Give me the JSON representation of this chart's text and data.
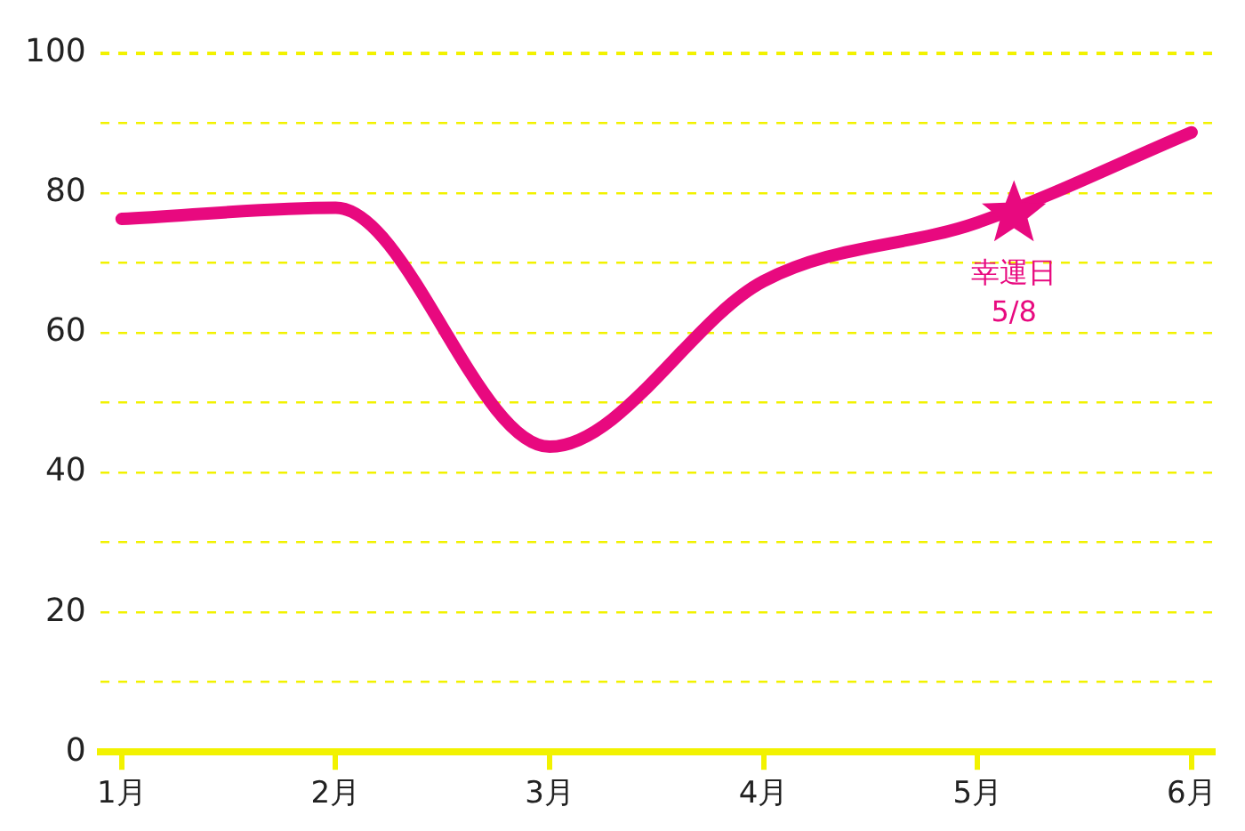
{
  "chart_data": {
    "type": "line",
    "x": [
      1,
      2,
      3,
      4,
      5,
      6
    ],
    "series": [
      {
        "type": "line",
        "color": "#e8097f",
        "marker": "none",
        "values": [
          76.3,
          77.9,
          43.7,
          67.4,
          75.8,
          88.7
        ]
      },
      {
        "type": "scatter",
        "color": "#e8097f",
        "marker": "star",
        "x": [
          5.17
        ],
        "values": [
          77
        ]
      }
    ],
    "xlim": [
      0.9,
      6.1
    ],
    "xticks": [
      {
        "value": 1,
        "label": "1月"
      },
      {
        "value": 2,
        "label": "2月"
      },
      {
        "value": 3,
        "label": "3月"
      },
      {
        "value": 4,
        "label": "4月"
      },
      {
        "value": 5,
        "label": "5月"
      },
      {
        "value": 6,
        "label": "6月"
      }
    ],
    "ylim": [
      0,
      100
    ],
    "yticks": [
      0,
      {
        "value": 10,
        "label": null
      },
      20,
      {
        "value": 30,
        "label": null
      },
      40,
      {
        "value": 50,
        "label": null
      },
      60,
      {
        "value": 70,
        "label": null
      },
      80,
      {
        "value": 90,
        "label": null
      },
      100
    ],
    "grid": "y",
    "legend": false,
    "line_style": "solid",
    "annotations": [
      {
        "text": "幸運日\n5/8",
        "x": 5.17,
        "y": 77
      }
    ]
  }
}
